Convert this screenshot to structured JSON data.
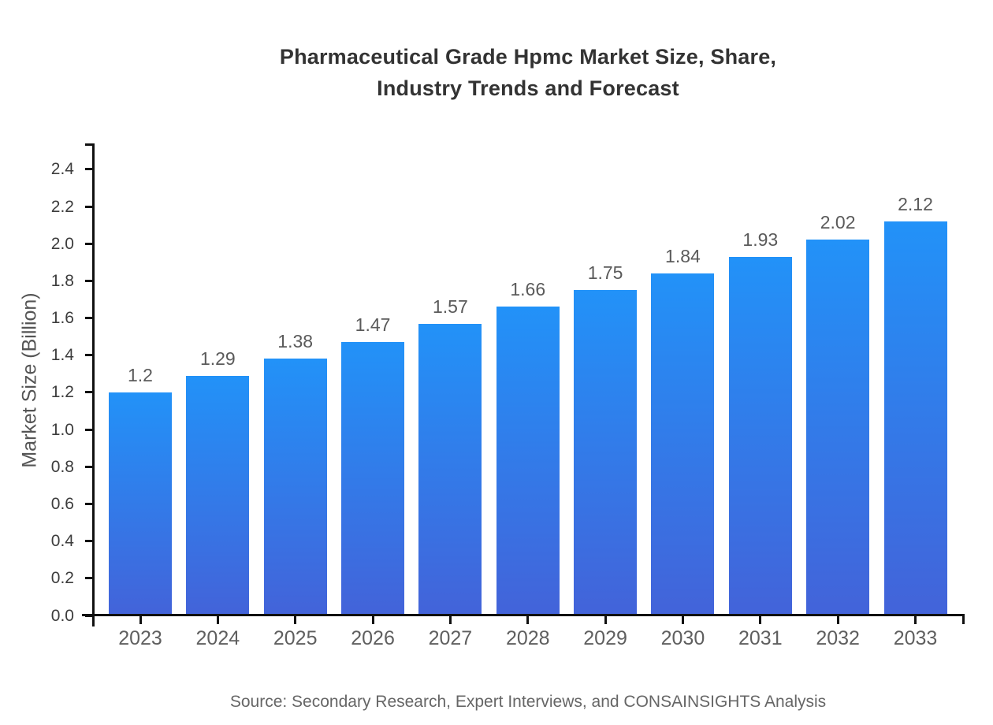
{
  "header": {
    "title_lines": [
      "Pharmaceutical Grade Hpmc Market Size, Share,",
      "Industry Trends and Forecast"
    ]
  },
  "chart_data": {
    "type": "bar",
    "title": "Pharmaceutical Grade Hpmc Market Size, Share, Industry Trends and Forecast",
    "categories": [
      "2023",
      "2024",
      "2025",
      "2026",
      "2027",
      "2028",
      "2029",
      "2030",
      "2031",
      "2032",
      "2033"
    ],
    "values": [
      1.2,
      1.29,
      1.38,
      1.47,
      1.57,
      1.66,
      1.75,
      1.84,
      1.93,
      2.02,
      2.12
    ],
    "bar_labels": [
      "1.2",
      "1.29",
      "1.38",
      "1.47",
      "1.57",
      "1.66",
      "1.75",
      "1.84",
      "1.93",
      "2.02",
      "2.12"
    ],
    "xlabel": "",
    "ylabel": "Market Size (Billion)",
    "ylim": [
      0,
      2.5
    ],
    "ytick_labels": [
      "0.0",
      "0.2",
      "0.4",
      "0.6",
      "0.8",
      "1.0",
      "1.2",
      "1.4",
      "1.6",
      "1.8",
      "2.0",
      "2.2",
      "2.4"
    ],
    "grid": false,
    "legend": "none",
    "colors": {
      "bar_gradient_top": "#2292f8",
      "bar_gradient_bottom": "#4363d9",
      "axis": "#111111",
      "ytick_label": "#3d3d3d",
      "value_label": "#5a5a5a",
      "category_label": "#5f5f5f",
      "title": "#333333",
      "source": "#666666"
    }
  },
  "footer": {
    "source": "Source: Secondary Research, Expert Interviews, and CONSAINSIGHTS Analysis"
  }
}
